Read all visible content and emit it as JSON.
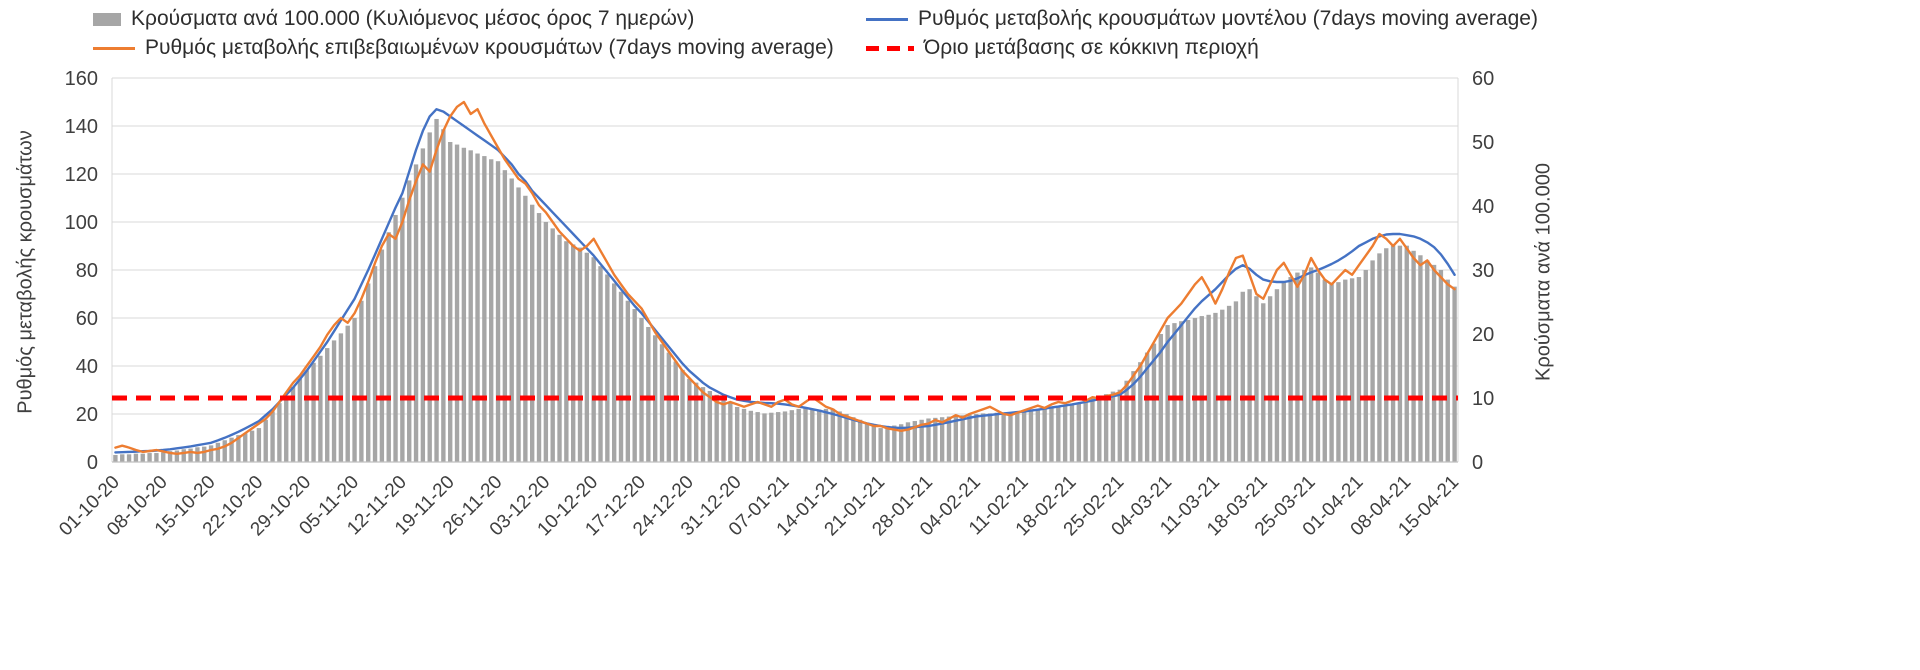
{
  "legend": {
    "items": [
      {
        "label": "Κρούσματα ανά 100.000 (Κυλιόμενος μέσος όρος 7 ημερών)",
        "marker": "bar-swatch",
        "color": "#a6a6a6"
      },
      {
        "label": "Ρυθμός μεταβολής κρουσμάτων μοντέλου (7days moving average)",
        "marker": "line",
        "color": "#4472c4"
      },
      {
        "label": "Ρυθμός μεταβολής επιβεβαιωμένων κρουσμάτων (7days moving average)",
        "marker": "line",
        "color": "#ed7d31"
      },
      {
        "label": "Όριο μετάβασης σε κόκκινη περιοχή",
        "marker": "dashed-line",
        "color": "#ff0000"
      }
    ]
  },
  "chart_data": {
    "type": "combo-bar-line",
    "title": "",
    "legend_position": "top",
    "grid": "horizontal",
    "points_per_tick": 7,
    "x_tick_labels": [
      "01-10-20",
      "08-10-20",
      "15-10-20",
      "22-10-20",
      "29-10-20",
      "05-11-20",
      "12-11-20",
      "19-11-20",
      "26-11-20",
      "03-12-20",
      "10-12-20",
      "17-12-20",
      "24-12-20",
      "31-12-20",
      "07-01-21",
      "14-01-21",
      "21-01-21",
      "28-01-21",
      "04-02-21",
      "11-02-21",
      "18-02-21",
      "25-02-21",
      "04-03-21",
      "11-03-21",
      "18-03-21",
      "25-03-21",
      "01-04-21",
      "08-04-21",
      "15-04-21"
    ],
    "axes": {
      "left": {
        "label": "Ρυθμός μεταβολής κρουσμάτων",
        "min": 0,
        "max": 160,
        "step": 20
      },
      "right": {
        "label": "Κρούσματα ανά 100.000",
        "min": 0,
        "max": 60,
        "step": 10
      }
    },
    "series": {
      "bars": {
        "name": "Κρούσματα ανά 100.000 (Κυλιόμενος μέσος όρος 7 ημερών)",
        "chart_type": "bar",
        "axis": "right",
        "color": "#a6a6a6",
        "values": [
          1.1,
          1.2,
          1.2,
          1.3,
          1.3,
          1.4,
          1.4,
          1.5,
          1.7,
          1.8,
          2.0,
          2.1,
          2.3,
          2.4,
          2.6,
          3.0,
          3.4,
          3.8,
          4.2,
          4.5,
          4.9,
          5.3,
          6.6,
          7.9,
          9.2,
          10.4,
          11.7,
          13.0,
          14.3,
          15.5,
          16.6,
          17.8,
          19.0,
          20.1,
          21.3,
          22.5,
          25.2,
          27.9,
          30.6,
          33.2,
          35.9,
          38.6,
          41.3,
          44.0,
          46.5,
          49.0,
          51.5,
          53.6,
          52.0,
          50.0,
          49.6,
          49.1,
          48.7,
          48.2,
          47.8,
          47.3,
          47.0,
          45.6,
          44.3,
          42.9,
          41.6,
          40.2,
          38.9,
          37.5,
          36.5,
          35.5,
          34.5,
          34.0,
          33.5,
          32.7,
          32.0,
          30.6,
          29.3,
          27.9,
          26.6,
          25.2,
          23.9,
          22.5,
          21.1,
          19.8,
          18.4,
          17.1,
          15.7,
          14.4,
          13.0,
          12.4,
          11.7,
          11.1,
          10.5,
          9.9,
          9.2,
          8.6,
          8.3,
          8.0,
          7.8,
          7.6,
          7.7,
          7.8,
          7.9,
          8.1,
          8.3,
          8.4,
          8.3,
          8.2,
          8.3,
          8.3,
          7.9,
          7.5,
          7.0,
          6.6,
          6.1,
          5.7,
          5.3,
          5.5,
          5.7,
          5.9,
          6.2,
          6.4,
          6.6,
          6.8,
          6.9,
          7.0,
          7.1,
          7.2,
          7.3,
          7.4,
          7.5,
          7.6,
          7.6,
          7.7,
          7.7,
          7.8,
          7.8,
          7.9,
          8.1,
          8.2,
          8.4,
          8.5,
          8.7,
          8.8,
          9.0,
          9.3,
          9.6,
          10.0,
          10.3,
          10.6,
          11.0,
          11.3,
          12.7,
          14.2,
          15.6,
          17.1,
          18.5,
          20.0,
          21.4,
          21.7,
          22.0,
          22.2,
          22.5,
          22.8,
          23.0,
          23.3,
          23.8,
          24.4,
          25.1,
          26.6,
          27.0,
          25.9,
          24.8,
          25.9,
          27.0,
          28.1,
          28.9,
          29.6,
          30.0,
          30.4,
          29.6,
          28.5,
          27.8,
          28.1,
          28.5,
          28.7,
          28.9,
          30.0,
          31.5,
          32.6,
          33.4,
          33.8,
          33.8,
          33.8,
          33.0,
          32.3,
          31.5,
          30.8,
          30.0,
          28.5,
          27.4
        ]
      },
      "model_rate": {
        "name": "Ρυθμός μεταβολής κρουσμάτων μοντέλου (7days moving average)",
        "chart_type": "line",
        "axis": "left",
        "color": "#4472c4",
        "values": [
          4.0,
          4.1,
          4.2,
          4.3,
          4.5,
          4.6,
          4.8,
          5.0,
          5.3,
          5.7,
          6.1,
          6.5,
          7.0,
          7.5,
          8.0,
          9.0,
          10.1,
          11.3,
          12.6,
          14.0,
          15.5,
          17.0,
          19.5,
          22.0,
          25.0,
          28.0,
          31.0,
          34.5,
          38.0,
          42.0,
          46.0,
          50.0,
          54.5,
          59.0,
          63.5,
          68.0,
          74.0,
          80.0,
          86.5,
          93.0,
          99.5,
          106.0,
          112.0,
          121.0,
          130.0,
          138.0,
          144.0,
          147.0,
          146.0,
          144.0,
          142.0,
          140.0,
          138.0,
          136.0,
          134.0,
          132.0,
          130.0,
          127.0,
          124.0,
          120.0,
          117.0,
          113.0,
          110.0,
          107.0,
          104.0,
          101.0,
          98.0,
          95.0,
          92.0,
          89.0,
          86.0,
          82.5,
          79.0,
          75.5,
          72.0,
          68.5,
          65.0,
          62.0,
          58.5,
          55.0,
          51.5,
          48.0,
          44.5,
          41.0,
          38.0,
          35.5,
          33.0,
          31.0,
          29.5,
          28.0,
          27.0,
          26.0,
          25.5,
          25.0,
          24.8,
          24.6,
          24.5,
          24.3,
          24.0,
          23.6,
          23.1,
          22.6,
          22.0,
          21.4,
          20.7,
          20.0,
          19.2,
          18.4,
          17.6,
          16.8,
          16.1,
          15.5,
          15.0,
          14.6,
          14.3,
          14.2,
          14.3,
          14.5,
          14.8,
          15.0,
          15.5,
          16.0,
          16.6,
          17.2,
          17.8,
          18.4,
          19.0,
          19.3,
          19.6,
          19.9,
          20.2,
          20.5,
          20.8,
          21.0,
          21.4,
          21.8,
          22.2,
          22.7,
          23.1,
          23.6,
          24.0,
          24.5,
          25.0,
          25.6,
          26.2,
          26.8,
          27.4,
          28.0,
          30.0,
          32.5,
          35.5,
          39.0,
          42.5,
          46.0,
          50.0,
          53.5,
          57.0,
          60.5,
          64.0,
          67.0,
          69.5,
          72.0,
          75.0,
          78.0,
          80.5,
          82.0,
          80.5,
          78.0,
          76.0,
          75.3,
          75.0,
          75.0,
          75.5,
          76.5,
          77.8,
          79.0,
          80.0,
          81.2,
          82.5,
          84.0,
          85.8,
          87.8,
          90.0,
          91.5,
          93.0,
          94.0,
          94.8,
          95.0,
          95.0,
          94.5,
          94.0,
          93.0,
          91.5,
          89.5,
          86.5,
          82.5,
          78.0
        ]
      },
      "confirmed_rate": {
        "name": "Ρυθμός μεταβολής επιβεβαιωμένων κρουσμάτων (7days moving average)",
        "chart_type": "line",
        "axis": "left",
        "color": "#ed7d31",
        "values": [
          6.0,
          6.8,
          6.0,
          5.0,
          4.2,
          4.6,
          5.0,
          4.4,
          3.8,
          3.4,
          3.8,
          4.2,
          3.8,
          4.2,
          5.0,
          5.5,
          6.5,
          8.0,
          10.0,
          12.0,
          14.0,
          16.0,
          18.0,
          21.0,
          25.0,
          29.0,
          33.0,
          36.0,
          40.0,
          44.0,
          48.0,
          53.0,
          57.0,
          60.0,
          58.0,
          62.0,
          68.0,
          75.0,
          83.0,
          90.0,
          95.0,
          93.0,
          100.0,
          109.0,
          117.0,
          124.0,
          121.0,
          130.0,
          138.0,
          144.0,
          148.0,
          150.0,
          145.0,
          147.0,
          141.0,
          136.0,
          131.0,
          126.0,
          122.0,
          118.0,
          116.0,
          112.0,
          107.0,
          104.0,
          100.0,
          96.0,
          93.0,
          90.0,
          88.0,
          90.0,
          93.0,
          88.0,
          83.0,
          78.0,
          74.0,
          70.0,
          67.0,
          64.0,
          59.0,
          54.0,
          50.0,
          46.0,
          42.0,
          38.0,
          35.0,
          32.0,
          29.0,
          27.0,
          25.0,
          24.0,
          25.0,
          24.0,
          23.0,
          24.0,
          25.0,
          24.0,
          23.0,
          25.0,
          26.0,
          24.0,
          23.0,
          25.0,
          27.0,
          25.0,
          23.0,
          22.0,
          20.0,
          19.0,
          18.0,
          17.0,
          16.0,
          15.0,
          15.0,
          14.0,
          13.5,
          13.0,
          13.5,
          14.5,
          15.5,
          16.0,
          17.5,
          16.5,
          18.0,
          19.5,
          18.5,
          20.0,
          21.0,
          22.0,
          23.0,
          21.5,
          20.0,
          19.5,
          20.5,
          21.5,
          22.5,
          23.5,
          22.5,
          24.0,
          25.0,
          24.5,
          25.5,
          26.5,
          25.5,
          27.0,
          26.5,
          27.5,
          28.0,
          29.0,
          32.0,
          36.0,
          40.0,
          45.0,
          50.0,
          55.0,
          60.0,
          63.0,
          66.0,
          70.0,
          74.0,
          77.0,
          72.0,
          66.0,
          72.0,
          79.0,
          85.0,
          86.0,
          78.0,
          70.0,
          68.0,
          74.0,
          80.0,
          83.0,
          78.0,
          73.0,
          78.0,
          85.0,
          80.0,
          76.0,
          74.0,
          77.0,
          80.0,
          78.0,
          82.0,
          86.0,
          90.0,
          95.0,
          93.0,
          90.0,
          93.0,
          89.0,
          85.0,
          82.0,
          84.0,
          80.0,
          77.0,
          74.0,
          72.0
        ]
      },
      "threshold": {
        "name": "Όριο μετάβασης σε κόκκινη περιοχή",
        "chart_type": "dashed-constant-line",
        "axis": "right",
        "value": 10,
        "color": "#ff0000"
      }
    }
  },
  "colors": {
    "bar": "#a6a6a6",
    "model_line": "#4472c4",
    "confirmed_line": "#ed7d31",
    "threshold_line": "#ff0000",
    "gridline": "#d9d9d9",
    "axis_line": "#bfbfbf",
    "text": "#3f3f3f",
    "background": "#ffffff"
  }
}
